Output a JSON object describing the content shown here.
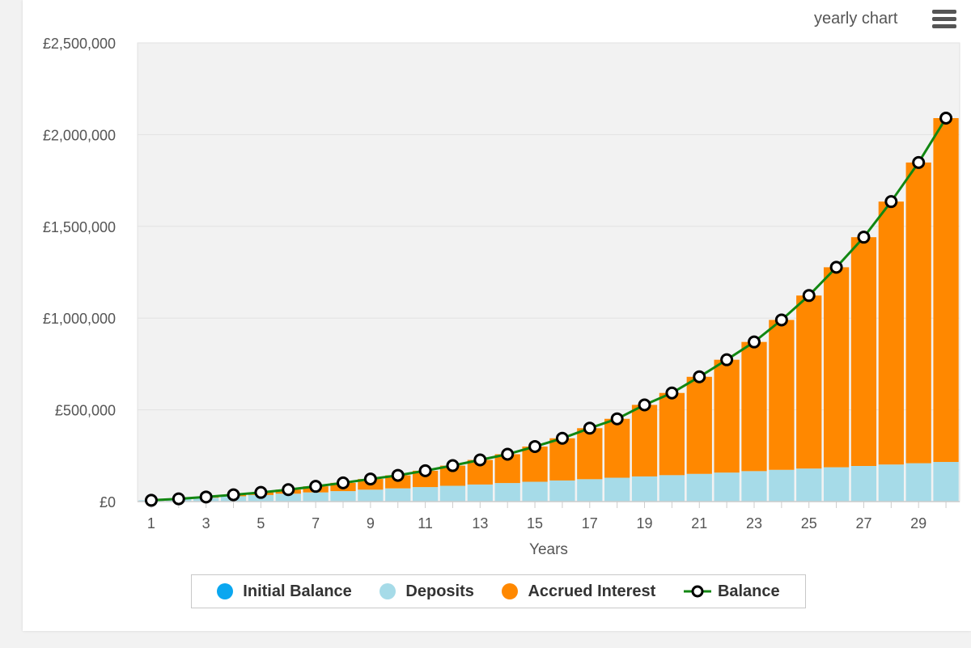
{
  "header": {
    "chart_mode_label": "yearly chart",
    "menu_icon": "hamburger-menu-icon"
  },
  "colors": {
    "initial_balance": "#0aa7f0",
    "deposits": "#a6dbe8",
    "accrued_interest": "#ff8800",
    "balance_line": "#128712",
    "plot_background": "#f2f2f2"
  },
  "chart_data": {
    "type": "bar",
    "stacked": true,
    "xlabel": "Years",
    "ylabel": "",
    "ylim": [
      0,
      2500000
    ],
    "y_ticks": [
      0,
      500000,
      1000000,
      1500000,
      2000000,
      2500000
    ],
    "y_tick_labels": [
      "£0",
      "£500,000",
      "£1,000,000",
      "£1,500,000",
      "£2,000,000",
      "£2,500,000"
    ],
    "x_tick_labels": [
      "1",
      "3",
      "5",
      "7",
      "9",
      "11",
      "13",
      "15",
      "17",
      "19",
      "21",
      "23",
      "25",
      "27",
      "29"
    ],
    "categories": [
      1,
      2,
      3,
      4,
      5,
      6,
      7,
      8,
      9,
      10,
      11,
      12,
      13,
      14,
      15,
      16,
      17,
      18,
      19,
      20,
      21,
      22,
      23,
      24,
      25,
      26,
      27,
      28,
      29,
      30
    ],
    "grid": true,
    "legend_position": "bottom",
    "series": [
      {
        "name": "Initial Balance",
        "values": [
          0,
          0,
          0,
          0,
          0,
          0,
          0,
          0,
          0,
          0,
          0,
          0,
          0,
          0,
          0,
          0,
          0,
          0,
          0,
          0,
          0,
          0,
          0,
          0,
          0,
          0,
          0,
          0,
          0,
          0
        ]
      },
      {
        "name": "Deposits",
        "values": [
          7000,
          14000,
          21000,
          29000,
          36000,
          43000,
          50000,
          57000,
          65000,
          72000,
          79000,
          86000,
          93000,
          101000,
          108000,
          115000,
          122000,
          130000,
          137000,
          144000,
          151000,
          158000,
          166000,
          173000,
          180000,
          187000,
          194000,
          202000,
          209000,
          216000
        ]
      },
      {
        "name": "Accrued Interest",
        "values": [
          0,
          1000,
          4000,
          8000,
          14000,
          22000,
          33000,
          45000,
          58000,
          71000,
          89000,
          110000,
          134000,
          157000,
          192000,
          230000,
          278000,
          321000,
          390000,
          448000,
          529000,
          615000,
          704000,
          817000,
          943000,
          1090000,
          1247000,
          1433000,
          1639000,
          1874000
        ]
      },
      {
        "name": "Balance",
        "type": "line",
        "values": [
          7000,
          15000,
          25000,
          37000,
          50000,
          65000,
          83000,
          102000,
          123000,
          143000,
          168000,
          196000,
          227000,
          258000,
          300000,
          345000,
          400000,
          451000,
          527000,
          592000,
          680000,
          773000,
          870000,
          990000,
          1123000,
          1277000,
          1441000,
          1635000,
          1848000,
          2090000
        ]
      }
    ]
  }
}
